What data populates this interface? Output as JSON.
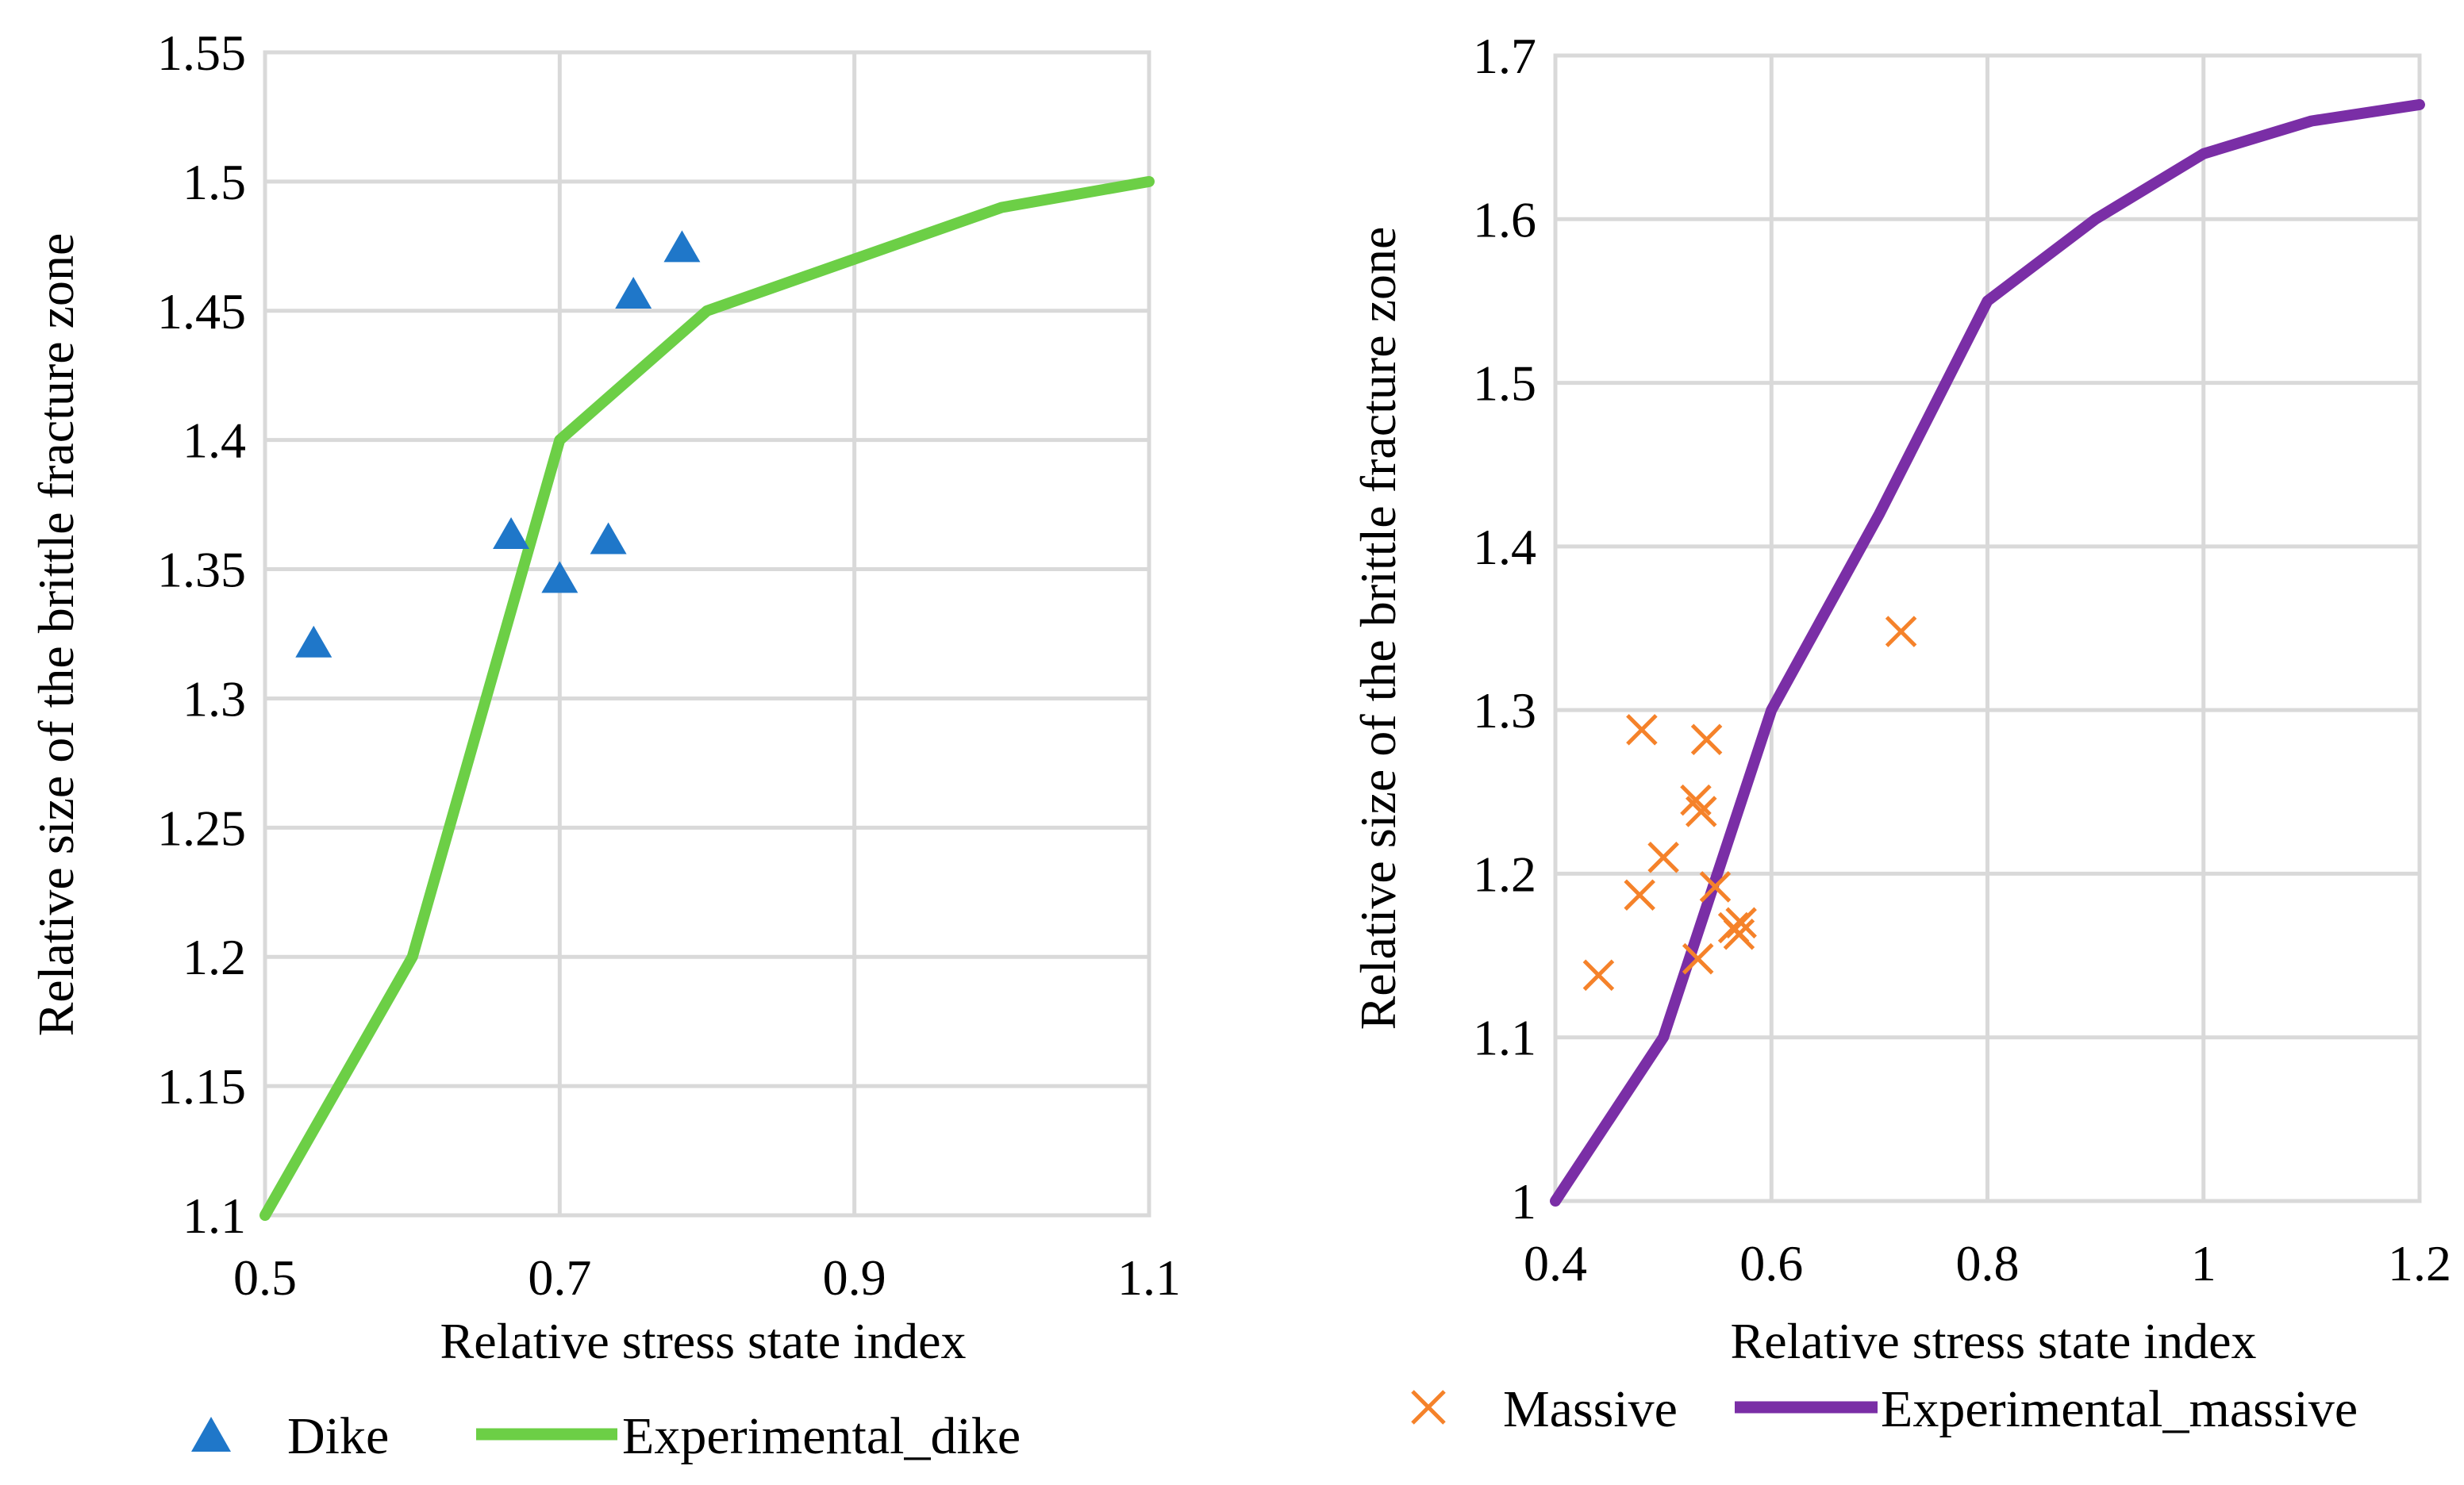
{
  "colors": {
    "dike_marker": "#1f77c9",
    "experimental_dike_line": "#6ccf46",
    "massive_marker": "#f5822a",
    "experimental_massive_line": "#7a2ea6",
    "grid": "#d9d9d9"
  },
  "chart_data": [
    {
      "type": "scatter",
      "title": "",
      "xlabel": "Relative stress state index",
      "ylabel": "Relative size of the brittle fracture zone",
      "xlim": [
        0.5,
        1.1
      ],
      "ylim": [
        1.1,
        1.55
      ],
      "xticks": [
        0.5,
        0.7,
        0.9,
        1.1
      ],
      "xtick_labels": [
        "0.5",
        "0.7",
        "0.9",
        "1.1"
      ],
      "yticks": [
        1.1,
        1.15,
        1.2,
        1.25,
        1.3,
        1.35,
        1.4,
        1.45,
        1.5,
        1.55
      ],
      "ytick_labels": [
        "1.1",
        "1.15",
        "1.2",
        "1.25",
        "1.3",
        "1.35",
        "1.4",
        "1.45",
        "1.5",
        "1.55"
      ],
      "grid": true,
      "legend_position": "bottom",
      "series": [
        {
          "name": "Dike",
          "kind": "scatter",
          "marker": "triangle",
          "color": "#1f77c9",
          "points": [
            [
              0.533,
              1.322
            ],
            [
              0.667,
              1.364
            ],
            [
              0.7,
              1.347
            ],
            [
              0.733,
              1.362
            ],
            [
              0.75,
              1.457
            ],
            [
              0.783,
              1.475
            ]
          ]
        },
        {
          "name": "Experimental_dike",
          "kind": "line",
          "color": "#6ccf46",
          "points": [
            [
              0.5,
              1.1
            ],
            [
              0.6,
              1.2
            ],
            [
              0.7,
              1.4
            ],
            [
              0.8,
              1.45
            ],
            [
              0.9,
              1.47
            ],
            [
              1.0,
              1.49
            ],
            [
              1.1,
              1.5
            ]
          ]
        }
      ]
    },
    {
      "type": "scatter",
      "title": "",
      "xlabel": "Relative stress state index",
      "ylabel": "Relative size of the brittle fracture zone",
      "xlim": [
        0.4,
        1.2
      ],
      "ylim": [
        1.0,
        1.7
      ],
      "xticks": [
        0.4,
        0.6,
        0.8,
        1.0,
        1.2
      ],
      "xtick_labels": [
        "0.4",
        "0.6",
        "0.8",
        "1",
        "1.2"
      ],
      "yticks": [
        1.0,
        1.1,
        1.2,
        1.3,
        1.4,
        1.5,
        1.6,
        1.7
      ],
      "ytick_labels": [
        "1",
        "1.1",
        "1.2",
        "1.3",
        "1.4",
        "1.5",
        "1.6",
        "1.7"
      ],
      "grid": true,
      "legend_position": "bottom",
      "series": [
        {
          "name": "Massive",
          "kind": "scatter",
          "marker": "x",
          "color": "#f5822a",
          "points": [
            [
              0.44,
              1.138
            ],
            [
              0.478,
              1.187
            ],
            [
              0.48,
              1.288
            ],
            [
              0.5,
              1.21
            ],
            [
              0.53,
              1.245
            ],
            [
              0.532,
              1.148
            ],
            [
              0.535,
              1.238
            ],
            [
              0.54,
              1.282
            ],
            [
              0.548,
              1.192
            ],
            [
              0.565,
              1.167
            ],
            [
              0.57,
              1.163
            ],
            [
              0.572,
              1.17
            ],
            [
              0.72,
              1.348
            ]
          ]
        },
        {
          "name": "Experimental_massive",
          "kind": "line",
          "color": "#7a2ea6",
          "points": [
            [
              0.4,
              1.0
            ],
            [
              0.5,
              1.1
            ],
            [
              0.6,
              1.3
            ],
            [
              0.7,
              1.42
            ],
            [
              0.8,
              1.55
            ],
            [
              0.9,
              1.6
            ],
            [
              1.0,
              1.64
            ],
            [
              1.1,
              1.66
            ],
            [
              1.2,
              1.67
            ]
          ]
        }
      ]
    }
  ]
}
